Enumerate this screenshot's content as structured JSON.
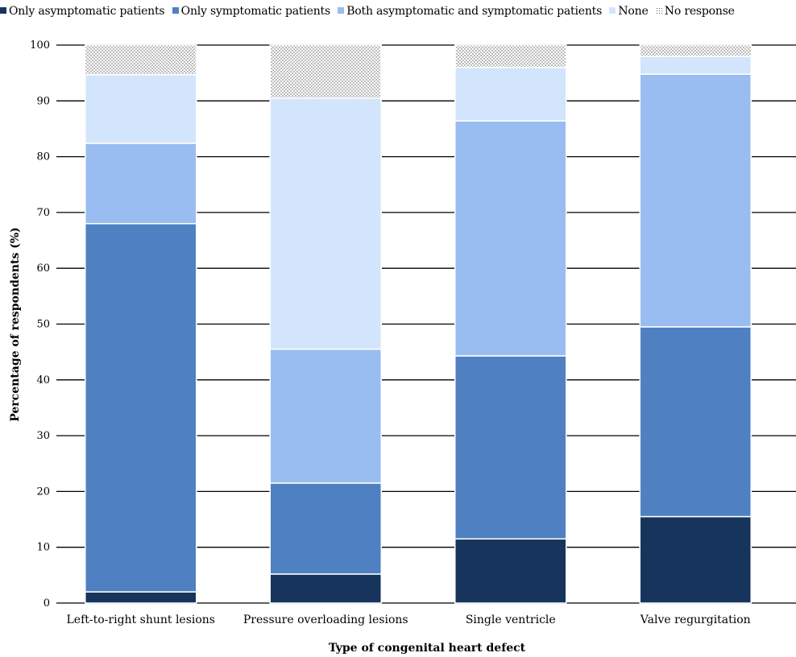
{
  "chart_data": {
    "type": "bar",
    "stacked": true,
    "categories": [
      "Left-to-right shunt lesions",
      "Pressure overloading lesions",
      "Single ventricle",
      "Valve regurgitation"
    ],
    "series": [
      {
        "name": "Only asymptomatic patients",
        "color": "#17355c",
        "values": [
          2.0,
          5.2,
          11.5,
          15.5
        ]
      },
      {
        "name": "Only symptomatic patients",
        "color": "#4f81c2",
        "values": [
          66.0,
          16.3,
          32.8,
          34.0
        ]
      },
      {
        "name": "Both asymptomatic and symptomatic patients",
        "color": "#99bdf0",
        "values": [
          14.4,
          24.0,
          42.1,
          45.3
        ]
      },
      {
        "name": "None",
        "color": "#d3e5fc",
        "values": [
          12.3,
          45.0,
          9.6,
          3.2
        ]
      },
      {
        "name": "No response",
        "color": "#ffffff",
        "pattern": "dotted",
        "values": [
          5.3,
          9.5,
          4.0,
          2.0
        ]
      }
    ],
    "xlabel": "Type of congenital heart defect",
    "ylabel": "Percentage of respondents (%)",
    "ylim": [
      0,
      100
    ],
    "yticks": [
      0,
      10,
      20,
      30,
      40,
      50,
      60,
      70,
      80,
      90,
      100
    ],
    "grid": true,
    "legend_position": "top"
  }
}
